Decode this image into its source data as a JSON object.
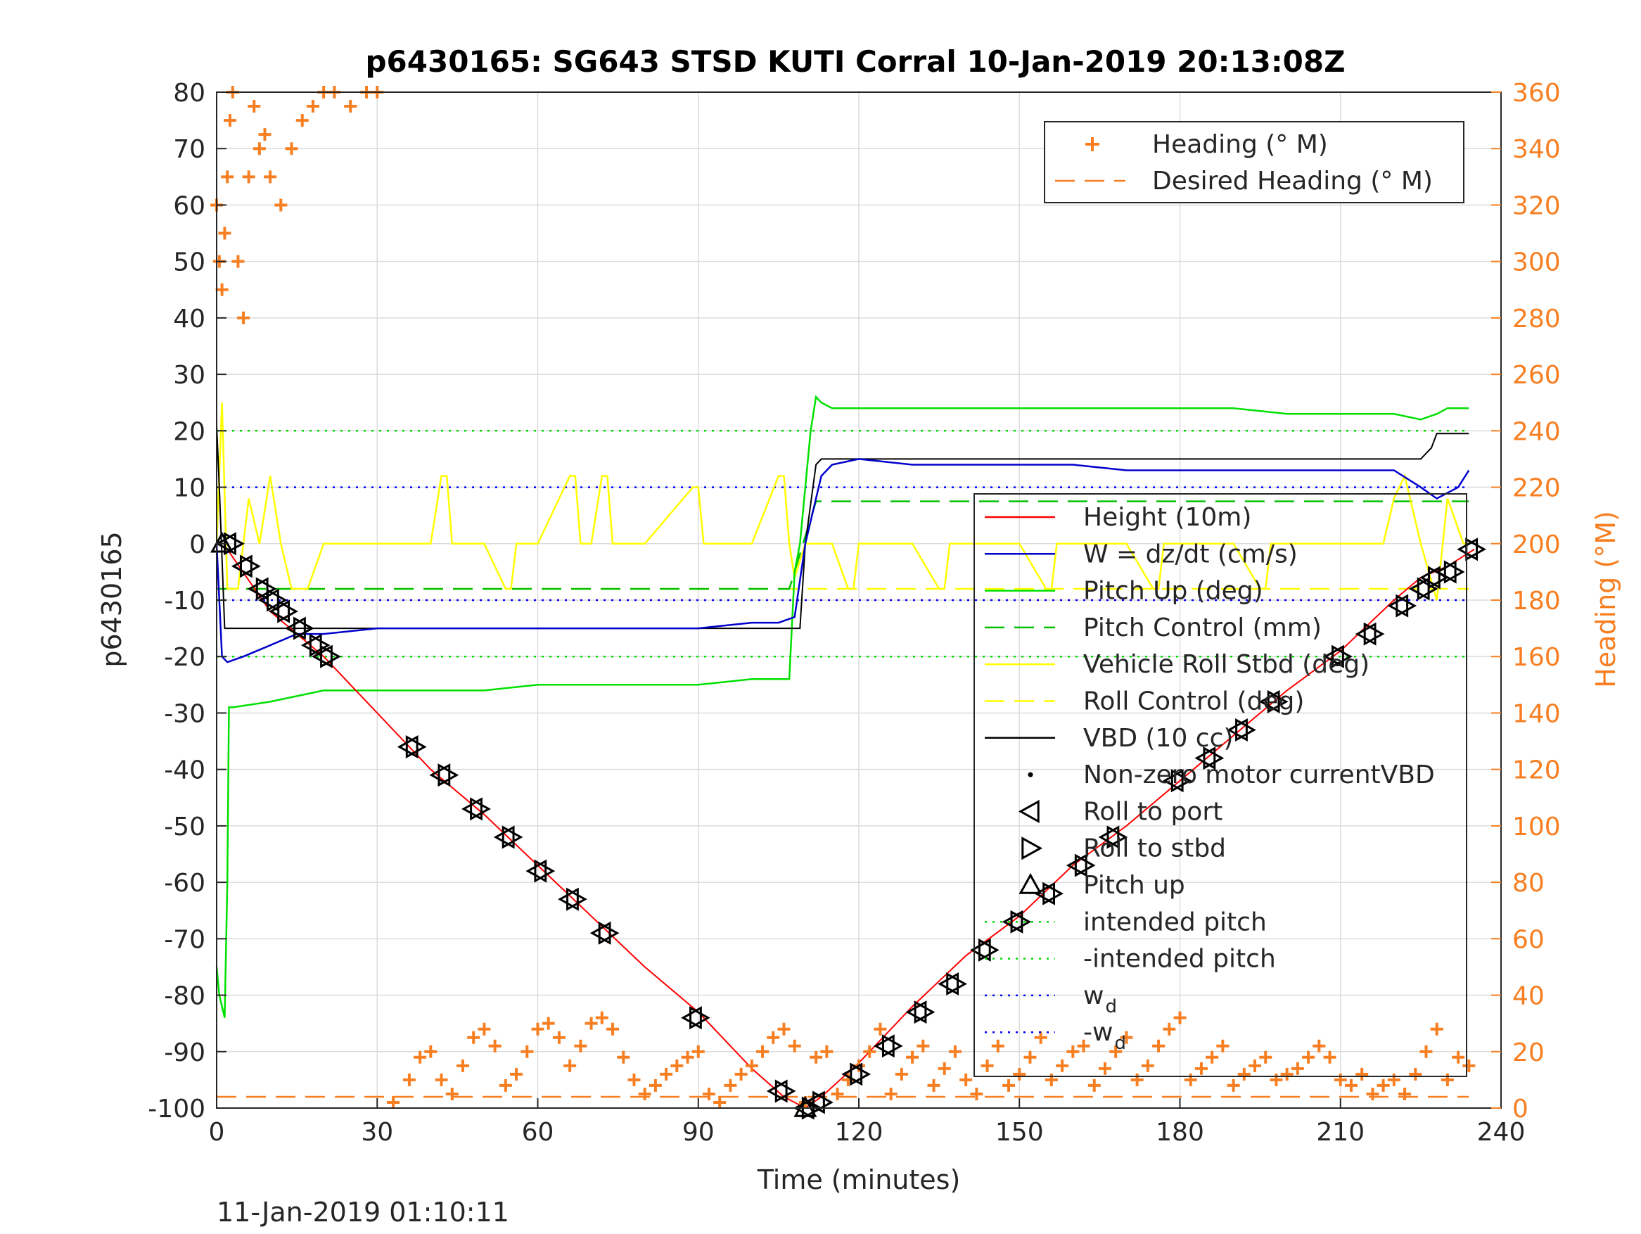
{
  "chart_data": {
    "type": "line",
    "title": "p6430165: SG643 STSD KUTI Corral 10-Jan-2019 20:13:08Z",
    "xlabel": "Time (minutes)",
    "ylabel_left": "p6430165",
    "ylabel_right": "Heading (°M)",
    "footer_timestamp": "11-Jan-2019 01:10:11",
    "xlim": [
      0,
      240
    ],
    "ylim_left": [
      -100,
      80
    ],
    "ylim_right": [
      0,
      360
    ],
    "grid": true,
    "x_ticks": [
      "0",
      "30",
      "60",
      "90",
      "120",
      "150",
      "180",
      "210",
      "240"
    ],
    "y_ticks_left": [
      "-100",
      "-90",
      "-80",
      "-70",
      "-60",
      "-50",
      "-40",
      "-30",
      "-20",
      "-10",
      "0",
      "10",
      "20",
      "30",
      "40",
      "50",
      "60",
      "70",
      "80"
    ],
    "y_ticks_right": [
      "0",
      "20",
      "40",
      "60",
      "80",
      "100",
      "120",
      "140",
      "160",
      "180",
      "200",
      "220",
      "240",
      "260",
      "280",
      "300",
      "320",
      "340",
      "360"
    ],
    "colors": {
      "heading": "#F77F22",
      "height": "#ff0000",
      "w": "#0000cc",
      "pitch_up": "#00e000",
      "pitch_control": "#00c000",
      "roll": "#ffff00",
      "vbd": "#000000",
      "intended_pitch": "#00dd00",
      "wd": "#0000ff",
      "axis_right": "#F77F22"
    },
    "legend_heading": {
      "placement": "top-right",
      "entries": [
        "Heading (° M)",
        "Desired Heading (° M)"
      ]
    },
    "legend_main": {
      "placement": "right",
      "entries": [
        "Height (10m)",
        "W = dz/dt (cm/s)",
        "Pitch Up (deg)",
        "Pitch Control (mm)",
        "Vehicle Roll Stbd (deg)",
        "Roll Control (deg)",
        "VBD (10 cc)",
        "Non-zero motor currentVBD",
        "Roll to port",
        "Roll to stbd",
        "Pitch up",
        "intended pitch",
        "-intended pitch",
        "w",
        "-w"
      ],
      "subscript": "d"
    },
    "series": [
      {
        "name": "Height (10m)",
        "axis": "left",
        "x": [
          0,
          2,
          10,
          20,
          30,
          40,
          50,
          60,
          70,
          80,
          90,
          100,
          106,
          110,
          113,
          120,
          130,
          140,
          150,
          160,
          170,
          180,
          190,
          200,
          210,
          220,
          225,
          230,
          235
        ],
        "y": [
          0,
          -1,
          -12,
          -20,
          -30,
          -40,
          -48,
          -57,
          -66,
          -75,
          -83,
          -93,
          -98,
          -100,
          -98,
          -92,
          -82,
          -73,
          -66,
          -57,
          -50,
          -42,
          -34,
          -26,
          -19,
          -10,
          -6,
          -4,
          -1
        ]
      },
      {
        "name": "W = dz/dt (cm/s)",
        "axis": "left",
        "x": [
          0,
          1,
          2,
          5,
          10,
          15,
          20,
          30,
          40,
          50,
          60,
          70,
          80,
          90,
          100,
          105,
          108,
          110,
          113,
          115,
          120,
          130,
          140,
          150,
          160,
          170,
          180,
          190,
          200,
          210,
          215,
          220,
          225,
          228,
          232,
          234
        ],
        "y": [
          0,
          -20,
          -21,
          -20,
          -18,
          -16,
          -16,
          -15,
          -15,
          -15,
          -15,
          -15,
          -15,
          -15,
          -14,
          -14,
          -13,
          0,
          12,
          14,
          15,
          14,
          14,
          14,
          14,
          13,
          13,
          13,
          13,
          13,
          13,
          13,
          10,
          8,
          10,
          13
        ]
      },
      {
        "name": "Pitch Up (deg)",
        "axis": "left",
        "x": [
          0,
          0.5,
          1,
          1.5,
          2,
          2.3,
          3,
          10,
          20,
          30,
          40,
          50,
          60,
          70,
          80,
          90,
          100,
          107,
          108,
          109,
          110,
          111,
          112,
          113,
          115,
          120,
          130,
          140,
          150,
          160,
          170,
          180,
          190,
          200,
          210,
          220,
          225,
          228,
          230,
          233,
          234
        ],
        "y": [
          -75,
          -80,
          -82,
          -84,
          -60,
          -29,
          -29,
          -28,
          -26,
          -26,
          -26,
          -26,
          -25,
          -25,
          -25,
          -25,
          -24,
          -24,
          -5,
          0,
          10,
          20,
          26,
          25,
          24,
          24,
          24,
          24,
          24,
          24,
          24,
          24,
          24,
          23,
          23,
          23,
          22,
          23,
          24,
          24,
          24
        ]
      },
      {
        "name": "Pitch Control (mm)",
        "axis": "left",
        "dash": "dashed",
        "x": [
          0,
          2,
          107,
          112,
          234
        ],
        "y": [
          -8,
          -8,
          -8,
          7.5,
          7.5
        ]
      },
      {
        "name": "Vehicle Roll Stbd (deg)",
        "axis": "left",
        "x": [
          0,
          1,
          2,
          4,
          6,
          8,
          10,
          12,
          14,
          17,
          20,
          30,
          40,
          42,
          43,
          44,
          50,
          54,
          55,
          56,
          60,
          66,
          67,
          68,
          70,
          72,
          73,
          74,
          80,
          89,
          90,
          91,
          100,
          105,
          106,
          107,
          108,
          110,
          115,
          118,
          119,
          120,
          130,
          135,
          136,
          137,
          150,
          155,
          156,
          157,
          170,
          175,
          176,
          177,
          190,
          195,
          196,
          197,
          210,
          218,
          220,
          222,
          225,
          228,
          230,
          233,
          234
        ],
        "y": [
          0,
          25,
          -8,
          -8,
          8,
          0,
          12,
          0,
          -8,
          -8,
          0,
          0,
          0,
          12,
          12,
          0,
          0,
          -8,
          -8,
          0,
          0,
          12,
          12,
          0,
          0,
          12,
          12,
          0,
          0,
          10,
          10,
          0,
          0,
          12,
          12,
          0,
          -6,
          0,
          0,
          -8,
          -8,
          0,
          0,
          -8,
          -8,
          0,
          0,
          -8,
          -8,
          0,
          0,
          -8,
          -8,
          0,
          0,
          -8,
          -8,
          0,
          0,
          0,
          8,
          12,
          0,
          -10,
          8,
          0,
          0
        ]
      },
      {
        "name": "Roll Control (deg)",
        "axis": "left",
        "dash": "dashed",
        "x": [
          0,
          234
        ],
        "y": [
          -8,
          -8
        ]
      },
      {
        "name": "VBD (10 cc)",
        "axis": "left",
        "x": [
          0,
          0.5,
          1.5,
          2,
          105,
          107,
          109,
          110,
          112,
          113,
          225,
          227,
          228,
          234
        ],
        "y": [
          21,
          10,
          -15,
          -15,
          -15,
          -15,
          -15,
          0,
          14,
          15,
          15,
          17,
          19.5,
          19.5
        ]
      },
      {
        "name": "Roll to port",
        "axis": "left",
        "marker": "triangle-left",
        "x": [
          2,
          5,
          8,
          10,
          12,
          15,
          18,
          20,
          36,
          42,
          48,
          54,
          60,
          66,
          72,
          89,
          105,
          110,
          112,
          119,
          125,
          131,
          137,
          143,
          149,
          155,
          161,
          167,
          179,
          185,
          191,
          197,
          209,
          215,
          221,
          225,
          227,
          230,
          234
        ],
        "y": [
          0,
          -4,
          -8,
          -10,
          -12,
          -15,
          -18,
          -20,
          -36,
          -41,
          -47,
          -52,
          -58,
          -63,
          -69,
          -84,
          -97,
          -100,
          -99,
          -94,
          -89,
          -83,
          -78,
          -72,
          -67,
          -62,
          -57,
          -52,
          -42,
          -38,
          -33,
          -28,
          -20,
          -16,
          -11,
          -8,
          -6,
          -5,
          -1
        ]
      },
      {
        "name": "Roll to stbd",
        "axis": "left",
        "marker": "triangle-right",
        "x": [
          3,
          6,
          9,
          11,
          13,
          16,
          19,
          21,
          37,
          43,
          49,
          55,
          61,
          67,
          73,
          90,
          106,
          111,
          113,
          120,
          126,
          132,
          138,
          144,
          150,
          156,
          162,
          168,
          180,
          186,
          192,
          198,
          210,
          216,
          222,
          226,
          228,
          231,
          235
        ],
        "y": [
          0,
          -4,
          -8,
          -10,
          -12,
          -15,
          -18,
          -20,
          -36,
          -41,
          -47,
          -52,
          -58,
          -63,
          -69,
          -84,
          -97,
          -100,
          -99,
          -94,
          -89,
          -83,
          -78,
          -72,
          -67,
          -62,
          -57,
          -52,
          -42,
          -38,
          -33,
          -28,
          -20,
          -16,
          -11,
          -8,
          -6,
          -5,
          -1
        ]
      },
      {
        "name": "Pitch up",
        "axis": "left",
        "marker": "triangle-up",
        "x": [
          1,
          110
        ],
        "y": [
          0,
          -100
        ]
      },
      {
        "name": "intended pitch",
        "axis": "left",
        "dash": "dotted",
        "x": [
          0,
          234
        ],
        "y": [
          20,
          20
        ]
      },
      {
        "name": "-intended pitch",
        "axis": "left",
        "dash": "dotted",
        "x": [
          0,
          234
        ],
        "y": [
          -20,
          -20
        ]
      },
      {
        "name": "w",
        "axis": "left",
        "dash": "dotted",
        "x": [
          0,
          234
        ],
        "y": [
          10,
          10
        ]
      },
      {
        "name": "-w",
        "axis": "left",
        "dash": "dotted",
        "x": [
          0,
          234
        ],
        "y": [
          -10,
          -10
        ]
      },
      {
        "name": "Heading (° M)",
        "axis": "right",
        "marker": "plus",
        "x": [
          0,
          0.5,
          1,
          1.5,
          2,
          2.5,
          3,
          4,
          5,
          6,
          7,
          8,
          9,
          10,
          12,
          14,
          16,
          18,
          20,
          22,
          25,
          28,
          30,
          33,
          36,
          38,
          40,
          42,
          44,
          46,
          48,
          50,
          52,
          54,
          56,
          58,
          60,
          62,
          64,
          66,
          68,
          70,
          72,
          74,
          76,
          78,
          80,
          82,
          84,
          86,
          88,
          90,
          92,
          94,
          96,
          98,
          100,
          102,
          104,
          106,
          108,
          110,
          112,
          114,
          116,
          118,
          120,
          122,
          124,
          126,
          128,
          130,
          132,
          134,
          136,
          138,
          140,
          142,
          144,
          146,
          148,
          150,
          152,
          154,
          156,
          158,
          160,
          162,
          164,
          166,
          168,
          170,
          172,
          174,
          176,
          178,
          180,
          182,
          184,
          186,
          188,
          190,
          192,
          194,
          196,
          198,
          200,
          202,
          204,
          206,
          208,
          210,
          212,
          214,
          216,
          218,
          220,
          222,
          224,
          226,
          228,
          230,
          232,
          234
        ],
        "y": [
          320,
          300,
          290,
          310,
          330,
          350,
          360,
          300,
          280,
          330,
          355,
          340,
          345,
          330,
          320,
          340,
          350,
          355,
          360,
          360,
          355,
          360,
          360,
          2,
          10,
          18,
          20,
          10,
          5,
          15,
          25,
          28,
          22,
          8,
          12,
          20,
          28,
          30,
          25,
          15,
          22,
          30,
          32,
          28,
          18,
          10,
          5,
          8,
          12,
          15,
          18,
          20,
          5,
          2,
          8,
          12,
          15,
          20,
          25,
          28,
          22,
          2,
          18,
          20,
          5,
          10,
          15,
          20,
          28,
          5,
          12,
          18,
          22,
          8,
          14,
          20,
          10,
          5,
          15,
          22,
          8,
          12,
          18,
          25,
          10,
          15,
          20,
          22,
          8,
          14,
          20,
          25,
          10,
          15,
          22,
          28,
          32,
          10,
          14,
          18,
          22,
          8,
          12,
          15,
          18,
          10,
          12,
          14,
          18,
          22,
          18,
          10,
          8,
          12,
          5,
          8,
          10,
          5,
          12,
          20,
          28,
          10,
          18,
          15
        ]
      },
      {
        "name": "Desired Heading (° M)",
        "axis": "right",
        "dash": "dashed",
        "x": [
          0,
          234
        ],
        "y": [
          4,
          4
        ]
      }
    ]
  }
}
